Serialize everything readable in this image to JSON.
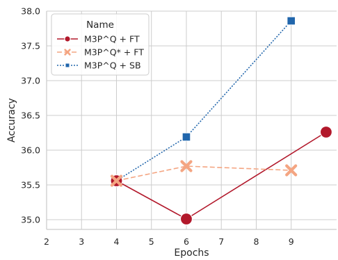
{
  "chart_data": {
    "type": "line",
    "xlabel": "Epochs",
    "ylabel": "Accuracy",
    "x_ticks": [
      "2",
      "3",
      "4",
      "5",
      "6",
      "7",
      "8",
      "9"
    ],
    "y_ticks": [
      "35.0",
      "35.5",
      "36.0",
      "36.5",
      "37.0",
      "37.5",
      "38.0"
    ],
    "xlim": [
      2,
      10.3
    ],
    "ylim": [
      34.86,
      38.0
    ],
    "grid": true,
    "legend": {
      "title": "Name",
      "position": "top-left"
    },
    "series": [
      {
        "name": "M3P^Q + FT",
        "color": "#b2182b",
        "line_style": "solid",
        "marker": "circle",
        "points": [
          [
            4,
            35.56
          ],
          [
            6,
            35.01
          ],
          [
            10,
            36.26
          ]
        ]
      },
      {
        "name": "M3P^Q* + FT",
        "color": "#f4a582",
        "line_style": "dashed",
        "marker": "x",
        "points": [
          [
            4,
            35.56
          ],
          [
            6,
            35.77
          ],
          [
            9,
            35.71
          ]
        ]
      },
      {
        "name": "M3P^Q + SB",
        "color": "#2166ac",
        "line_style": "dotted",
        "marker": "square",
        "points": [
          [
            4,
            35.56
          ],
          [
            6,
            36.19
          ],
          [
            9,
            37.86
          ]
        ]
      }
    ]
  }
}
